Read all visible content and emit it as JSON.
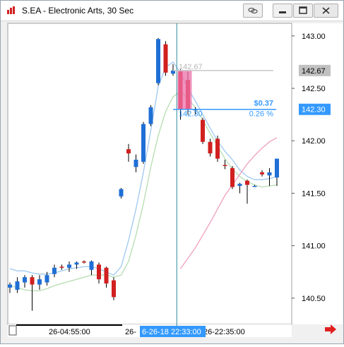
{
  "window": {
    "title": "S.EA - Electronic Arts, 30 Sec",
    "buttons": [
      "link-icon",
      "restore-icon",
      "maximize-icon",
      "close-icon"
    ]
  },
  "colors": {
    "up_candle": "#1f6fd6",
    "down_candle": "#d12020",
    "price_marker": "#3399ff",
    "last_price_box": "#c0c0c0",
    "ma_fast": "#9ec8f0",
    "ma_mid": "#b6dcb0",
    "ma_slow": "#f0a0c0",
    "crosshair": "#2a8a9a",
    "highlight": "#ee6fa8"
  },
  "chart_data": {
    "type": "candlestick",
    "title": "",
    "ylim": [
      140.25,
      143.12
    ],
    "y_ticks": [
      "143.00",
      "142.50",
      "142.00",
      "141.50",
      "141.00",
      "140.50"
    ],
    "x_labels": [
      "26-04:55:00",
      "26-",
      "26-22:35:00"
    ],
    "crosshair_x_label": "6-26-18 22:33:00",
    "price_labels": {
      "last": "142.67",
      "marker": "142.30"
    },
    "measure": {
      "start_price": "142.67",
      "end_price": "142.30",
      "change": "$0.37",
      "percent": "0.26 %"
    },
    "candles": [
      {
        "o": 140.6,
        "h": 140.65,
        "l": 140.55,
        "c": 140.63
      },
      {
        "o": 140.58,
        "h": 140.7,
        "l": 140.55,
        "c": 140.66
      },
      {
        "o": 140.65,
        "h": 140.72,
        "l": 140.6,
        "c": 140.7
      },
      {
        "o": 140.7,
        "h": 140.72,
        "l": 140.38,
        "c": 140.63
      },
      {
        "o": 140.63,
        "h": 140.72,
        "l": 140.58,
        "c": 140.68
      },
      {
        "o": 140.65,
        "h": 140.75,
        "l": 140.62,
        "c": 140.72
      },
      {
        "o": 140.73,
        "h": 140.82,
        "l": 140.7,
        "c": 140.79
      },
      {
        "o": 140.8,
        "h": 140.82,
        "l": 140.77,
        "c": 140.79
      },
      {
        "o": 140.79,
        "h": 140.85,
        "l": 140.75,
        "c": 140.82
      },
      {
        "o": 140.82,
        "h": 140.85,
        "l": 140.78,
        "c": 140.84
      },
      {
        "o": 140.85,
        "h": 140.86,
        "l": 140.83,
        "c": 140.84
      },
      {
        "o": 140.77,
        "h": 140.86,
        "l": 140.72,
        "c": 140.85
      },
      {
        "o": 140.82,
        "h": 140.84,
        "l": 140.64,
        "c": 140.68
      },
      {
        "o": 140.79,
        "h": 140.8,
        "l": 140.6,
        "c": 140.64
      },
      {
        "o": 140.67,
        "h": 140.7,
        "l": 140.48,
        "c": 140.51
      },
      {
        "o": 141.47,
        "h": 141.55,
        "l": 141.45,
        "c": 141.54
      },
      {
        "o": 141.92,
        "h": 141.97,
        "l": 141.8,
        "c": 141.88
      },
      {
        "o": 141.75,
        "h": 141.87,
        "l": 141.7,
        "c": 141.82
      },
      {
        "o": 141.8,
        "h": 142.18,
        "l": 141.78,
        "c": 142.16
      },
      {
        "o": 142.16,
        "h": 142.34,
        "l": 142.14,
        "c": 142.32
      },
      {
        "o": 142.55,
        "h": 142.98,
        "l": 142.53,
        "c": 142.97
      },
      {
        "o": 142.92,
        "h": 142.95,
        "l": 142.62,
        "c": 142.65
      },
      {
        "o": 142.64,
        "h": 142.73,
        "l": 142.62,
        "c": 142.67
      },
      {
        "o": 142.66,
        "h": 142.68,
        "l": 142.2,
        "c": 142.3
      },
      {
        "o": 142.58,
        "h": 142.66,
        "l": 142.25,
        "c": 142.3
      },
      {
        "o": 142.3,
        "h": 142.32,
        "l": 142.25,
        "c": 142.3
      },
      {
        "o": 142.2,
        "h": 142.22,
        "l": 141.97,
        "c": 141.99
      },
      {
        "o": 141.99,
        "h": 142.02,
        "l": 141.85,
        "c": 141.88
      },
      {
        "o": 142.02,
        "h": 142.05,
        "l": 141.8,
        "c": 141.83
      },
      {
        "o": 141.77,
        "h": 141.82,
        "l": 141.73,
        "c": 141.76
      },
      {
        "o": 141.74,
        "h": 141.76,
        "l": 141.54,
        "c": 141.56
      },
      {
        "o": 141.57,
        "h": 141.6,
        "l": 141.5,
        "c": 141.59
      },
      {
        "o": 141.62,
        "h": 141.63,
        "l": 141.4,
        "c": 141.58
      },
      {
        "o": 141.57,
        "h": 141.58,
        "l": 141.56,
        "c": 141.57
      },
      {
        "o": 141.7,
        "h": 141.72,
        "l": 141.66,
        "c": 141.68
      },
      {
        "o": 141.67,
        "h": 141.74,
        "l": 141.57,
        "c": 141.7
      },
      {
        "o": 141.65,
        "h": 141.83,
        "l": 141.57,
        "c": 141.83
      }
    ],
    "series": [
      {
        "values": [
          140.78,
          140.76,
          140.76,
          140.74,
          140.73,
          140.73,
          140.74,
          140.76,
          140.78,
          140.79,
          140.8,
          140.8,
          140.78,
          140.75,
          140.72,
          140.8,
          141.05,
          141.35,
          141.7,
          142.1,
          142.52,
          142.7,
          142.75,
          142.65,
          142.5,
          142.38,
          142.25,
          142.12,
          142.0,
          141.9,
          141.82,
          141.72,
          141.66,
          141.63,
          141.63,
          141.64,
          141.66
        ]
      },
      {
        "values": [
          140.62,
          140.6,
          140.58,
          140.57,
          140.57,
          140.59,
          140.62,
          140.64,
          140.66,
          140.68,
          140.7,
          140.72,
          140.72,
          140.72,
          140.7,
          140.72,
          140.85,
          141.1,
          141.4,
          141.75,
          142.05,
          142.28,
          142.42,
          142.47,
          142.4,
          142.32,
          142.2,
          142.07,
          141.95,
          141.83,
          141.73,
          141.66,
          141.61,
          141.58,
          141.56,
          141.57,
          141.58
        ]
      },
      {
        "values": [
          null,
          null,
          null,
          null,
          null,
          null,
          null,
          null,
          null,
          null,
          null,
          null,
          null,
          null,
          null,
          null,
          null,
          null,
          null,
          null,
          null,
          null,
          null,
          140.78,
          140.88,
          140.98,
          141.1,
          141.22,
          141.35,
          141.48,
          141.58,
          141.68,
          141.78,
          141.86,
          141.93,
          141.99,
          142.03
        ]
      }
    ]
  }
}
